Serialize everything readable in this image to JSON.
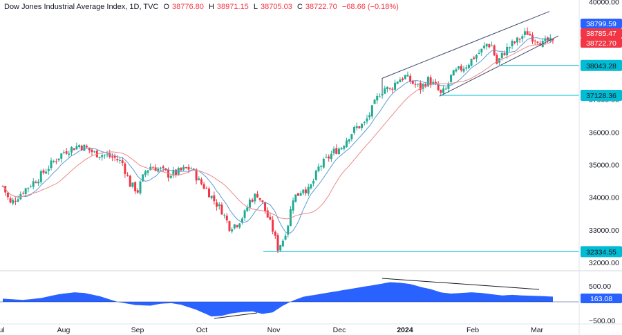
{
  "header": {
    "symbol": "Dow Jones Industrial Average Index, 1D, TVC",
    "open_label": "O",
    "open": "38776.80",
    "high_label": "H",
    "high": "38971.15",
    "low_label": "L",
    "low": "38705.03",
    "close_label": "C",
    "close": "38722.70",
    "change": "−68.66 (−0.18%)"
  },
  "colors": {
    "up": "#22ab94",
    "down": "#f23645",
    "ma_fast": "#5b9bd5",
    "ma_slow": "#e88a8a",
    "level_line": "#00bcd4",
    "channel": "#3d4a6b",
    "oscillator": "#2962ff"
  },
  "chart_data": {
    "type": "candlestick",
    "ylim": [
      32000,
      40000
    ],
    "y_ticks": [
      "40000.00",
      "38000.00",
      "37000.00",
      "36000.00",
      "35000.00",
      "34000.00",
      "33000.00",
      "32000.00"
    ],
    "x_tick_labels": [
      "Jul",
      "Aug",
      "Sep",
      "Oct",
      "Nov",
      "Dec",
      "2024",
      "Feb",
      "Mar"
    ],
    "price_path": [
      [
        0,
        34350
      ],
      [
        3,
        33800
      ],
      [
        8,
        34200
      ],
      [
        14,
        34600
      ],
      [
        20,
        35100
      ],
      [
        24,
        35400
      ],
      [
        27,
        35500
      ],
      [
        30,
        35600
      ],
      [
        33,
        35500
      ],
      [
        36,
        35350
      ],
      [
        40,
        35300
      ],
      [
        44,
        35200
      ],
      [
        47,
        35050
      ],
      [
        50,
        34400
      ],
      [
        53,
        34200
      ],
      [
        56,
        34800
      ],
      [
        58,
        34950
      ],
      [
        62,
        34850
      ],
      [
        65,
        34700
      ],
      [
        68,
        34750
      ],
      [
        71,
        34850
      ],
      [
        74,
        34900
      ],
      [
        77,
        34500
      ],
      [
        80,
        34250
      ],
      [
        83,
        33900
      ],
      [
        86,
        33600
      ],
      [
        89,
        33100
      ],
      [
        92,
        33200
      ],
      [
        95,
        33500
      ],
      [
        97,
        33900
      ],
      [
        100,
        34100
      ],
      [
        102,
        33800
      ],
      [
        104,
        33400
      ],
      [
        106,
        33000
      ],
      [
        108,
        32450
      ],
      [
        110,
        32700
      ],
      [
        112,
        33200
      ],
      [
        114,
        34000
      ],
      [
        116,
        34100
      ],
      [
        118,
        34300
      ],
      [
        120,
        34200
      ],
      [
        122,
        34500
      ],
      [
        124,
        34900
      ],
      [
        127,
        35150
      ],
      [
        130,
        35400
      ],
      [
        133,
        35550
      ],
      [
        136,
        35900
      ],
      [
        139,
        36150
      ],
      [
        142,
        36250
      ],
      [
        145,
        36700
      ],
      [
        148,
        37200
      ],
      [
        150,
        37350
      ],
      [
        152,
        37300
      ],
      [
        155,
        37600
      ],
      [
        158,
        37700
      ],
      [
        161,
        37500
      ],
      [
        164,
        37350
      ],
      [
        167,
        37600
      ],
      [
        170,
        37400
      ],
      [
        172,
        37150
      ],
      [
        174,
        37300
      ],
      [
        176,
        37700
      ],
      [
        178,
        37850
      ],
      [
        180,
        37950
      ],
      [
        182,
        38050
      ],
      [
        185,
        38300
      ],
      [
        188,
        38500
      ],
      [
        190,
        38700
      ],
      [
        192,
        38650
      ],
      [
        194,
        38100
      ],
      [
        196,
        38350
      ],
      [
        198,
        38550
      ],
      [
        200,
        38700
      ],
      [
        202,
        38800
      ],
      [
        204,
        38950
      ],
      [
        206,
        39050
      ],
      [
        208,
        38900
      ],
      [
        210,
        38850
      ],
      [
        212,
        38700
      ],
      [
        214,
        38800
      ],
      [
        216,
        38722
      ]
    ],
    "series": [
      {
        "type": "oscillator",
        "values": [
          [
            0,
            100
          ],
          [
            8,
            60
          ],
          [
            15,
            120
          ],
          [
            22,
            240
          ],
          [
            28,
            300
          ],
          [
            32,
            280
          ],
          [
            38,
            180
          ],
          [
            45,
            0
          ],
          [
            52,
            -100
          ],
          [
            58,
            -120
          ],
          [
            62,
            -60
          ],
          [
            66,
            -40
          ],
          [
            70,
            -90
          ],
          [
            76,
            -250
          ],
          [
            82,
            -460
          ],
          [
            86,
            -440
          ],
          [
            90,
            -360
          ],
          [
            94,
            -320
          ],
          [
            98,
            -300
          ],
          [
            102,
            -380
          ],
          [
            106,
            -330
          ],
          [
            110,
            -120
          ],
          [
            114,
            40
          ],
          [
            118,
            160
          ],
          [
            124,
            240
          ],
          [
            130,
            320
          ],
          [
            136,
            400
          ],
          [
            142,
            480
          ],
          [
            148,
            560
          ],
          [
            152,
            620
          ],
          [
            156,
            600
          ],
          [
            160,
            560
          ],
          [
            164,
            470
          ],
          [
            168,
            400
          ],
          [
            172,
            300
          ],
          [
            176,
            260
          ],
          [
            180,
            280
          ],
          [
            184,
            300
          ],
          [
            188,
            280
          ],
          [
            192,
            240
          ],
          [
            196,
            200
          ],
          [
            200,
            220
          ],
          [
            204,
            200
          ],
          [
            208,
            190
          ],
          [
            212,
            180
          ],
          [
            216,
            163
          ]
        ]
      }
    ],
    "levels": [
      {
        "label": "38043.28",
        "value": 38043.28
      },
      {
        "label": "37128.36",
        "value": 37128.36
      },
      {
        "label": "32334.55",
        "value": 32334.55
      }
    ],
    "price_badges": [
      {
        "label": "38799.59",
        "value": 38799.59,
        "color": "#2962ff"
      },
      {
        "label": "38785.47",
        "value": 38785.47,
        "color": "#f23645"
      },
      {
        "label": "38722.70",
        "value": 38722.7,
        "color": "#f23645"
      }
    ],
    "oscillator_ticks": [
      "500.00",
      "−500.00"
    ],
    "oscillator_value": "163.08",
    "oscillator_ylim": [
      -500,
      500
    ]
  }
}
